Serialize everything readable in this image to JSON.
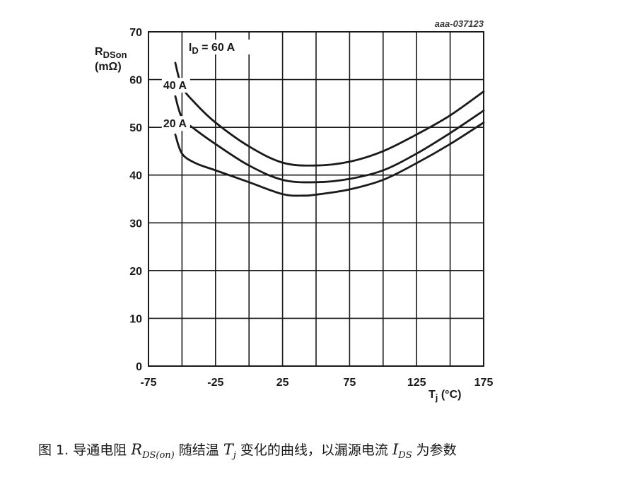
{
  "figure_id": "aaa-037123",
  "caption": {
    "prefix": "图 1. 导通电阻 ",
    "r_main": "R",
    "r_sub": "DS(on)",
    "mid": " 随结温 ",
    "t_main": "T",
    "t_sub": "j",
    "mid2": " 变化的曲线，以漏源电流 ",
    "i_main": "I",
    "i_sub": "DS",
    "suffix": " 为参数"
  },
  "chart_data": {
    "type": "line",
    "title": "",
    "xlabel": {
      "main": "T",
      "sub": "j",
      "unit": " (°C)"
    },
    "ylabel": {
      "main": "R",
      "sub": "DSon",
      "unit": "(mΩ)"
    },
    "xlim": [
      -75,
      175
    ],
    "ylim": [
      0,
      70
    ],
    "xticks": [
      -75,
      -25,
      25,
      75,
      125,
      175
    ],
    "xticks_minor_step": 25,
    "yticks": [
      0,
      10,
      20,
      30,
      40,
      50,
      60,
      70
    ],
    "grid": true,
    "legend": "none",
    "series_label_prefix": {
      "main": "I",
      "sub": "D",
      "eq": " = "
    },
    "series": [
      {
        "name": "60 A",
        "line_color": "#1a1a1a",
        "x": [
          -55,
          -50,
          -40,
          -25,
          0,
          25,
          50,
          75,
          100,
          125,
          150,
          175
        ],
        "y": [
          63.5,
          58.5,
          55,
          51,
          46,
          42.6,
          42,
          42.8,
          45,
          48.5,
          52.5,
          57.5
        ]
      },
      {
        "name": "40 A",
        "line_color": "#1a1a1a",
        "x": [
          -55,
          -50,
          -40,
          -25,
          0,
          25,
          50,
          75,
          100,
          125,
          150,
          175
        ],
        "y": [
          56.5,
          52,
          49.5,
          46.5,
          42,
          39,
          38.5,
          39.2,
          41,
          44.5,
          48.8,
          53.5
        ]
      },
      {
        "name": "20 A",
        "line_color": "#1a1a1a",
        "x": [
          -55,
          -50,
          -40,
          -25,
          0,
          25,
          40,
          50,
          75,
          100,
          125,
          150,
          175
        ],
        "y": [
          48.5,
          44.5,
          42.5,
          41,
          38.5,
          36,
          35.7,
          35.9,
          37,
          39,
          42.5,
          46.5,
          51
        ]
      }
    ],
    "series_label_positions": [
      {
        "series": "60 A",
        "x_data": -45,
        "y_data": 66
      },
      {
        "series": "40 A",
        "x_data": -64,
        "y_data": 58
      },
      {
        "series": "20 A",
        "x_data": -64,
        "y_data": 50
      }
    ]
  }
}
